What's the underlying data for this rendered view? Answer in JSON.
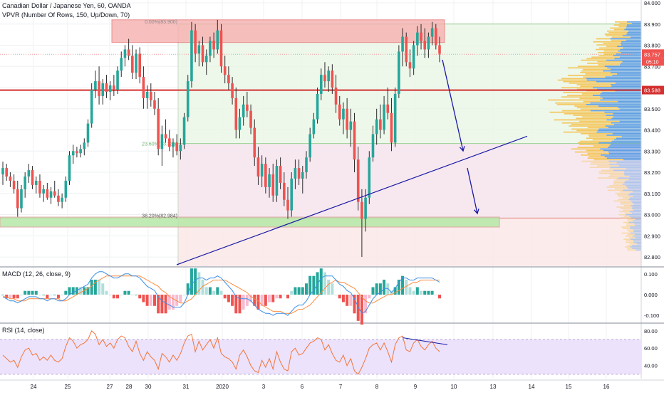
{
  "header": {
    "title": "Canadian Dollar / Japanese Yen, 60, OANDA",
    "indicator": "VPVR (Number Of Rows, 150, Up/Down, 70)"
  },
  "colors": {
    "up": "#26a69a",
    "down": "#ef5350",
    "wick": "#2b2b2b",
    "accent_line": "#d32f2f",
    "trend": "#1a1aa6",
    "rsi_band": "#ece2fb",
    "vol_up": "#5b9be3",
    "vol_down": "#f4c55a"
  },
  "chart_data": [
    {
      "type": "candlestick",
      "name": "price",
      "ylim": [
        82.77,
        84.0
      ],
      "y_ticks": [
        "84.000",
        "83.900",
        "83.800",
        "83.700",
        "83.600",
        "83.500",
        "83.400",
        "83.300",
        "83.200",
        "83.100",
        "83.000",
        "82.900",
        "82.800"
      ],
      "x_ticks": [
        "24",
        "25",
        "27",
        "28",
        "30",
        "31",
        "2020",
        "3",
        "6",
        "7",
        "8",
        "9",
        "10",
        "13",
        "14",
        "15",
        "16"
      ],
      "last_price": "83.757",
      "countdown": "05:10",
      "level_price": "83.588",
      "fib_labels": [
        "0.00%(83.900)",
        "23.60%(83.336)",
        "38.20%(82.984)"
      ],
      "fib_levels": [
        83.9,
        83.336,
        82.984
      ],
      "candles_ohlc_estimated": [
        [
          83.19,
          83.25,
          83.14,
          83.22
        ],
        [
          83.22,
          83.24,
          83.16,
          83.18
        ],
        [
          83.18,
          83.2,
          83.13,
          83.16
        ],
        [
          83.16,
          83.19,
          83.1,
          83.12
        ],
        [
          83.12,
          83.16,
          82.99,
          83.03
        ],
        [
          83.03,
          83.14,
          83.01,
          83.12
        ],
        [
          83.12,
          83.2,
          83.08,
          83.18
        ],
        [
          83.18,
          83.24,
          83.15,
          83.21
        ],
        [
          83.21,
          83.23,
          83.12,
          83.14
        ],
        [
          83.14,
          83.18,
          83.1,
          83.16
        ],
        [
          83.16,
          83.19,
          83.08,
          83.1
        ],
        [
          83.1,
          83.14,
          83.06,
          83.12
        ],
        [
          83.12,
          83.15,
          83.07,
          83.08
        ],
        [
          83.08,
          83.13,
          83.05,
          83.11
        ],
        [
          83.11,
          83.16,
          83.08,
          83.09
        ],
        [
          83.09,
          83.12,
          83.04,
          83.06
        ],
        [
          83.06,
          83.1,
          83.03,
          83.08
        ],
        [
          83.08,
          83.18,
          83.06,
          83.16
        ],
        [
          83.16,
          83.3,
          83.14,
          83.28
        ],
        [
          83.28,
          83.33,
          83.24,
          83.3
        ],
        [
          83.3,
          83.32,
          83.27,
          83.29
        ],
        [
          83.29,
          83.33,
          83.27,
          83.31
        ],
        [
          83.31,
          83.36,
          83.28,
          83.34
        ],
        [
          83.34,
          83.45,
          83.32,
          83.43
        ],
        [
          83.43,
          83.62,
          83.41,
          83.59
        ],
        [
          83.59,
          83.68,
          83.55,
          83.63
        ],
        [
          83.63,
          83.7,
          83.52,
          83.56
        ],
        [
          83.56,
          83.64,
          83.52,
          83.62
        ],
        [
          83.62,
          83.66,
          83.55,
          83.58
        ],
        [
          83.58,
          83.63,
          83.54,
          83.61
        ],
        [
          83.61,
          83.66,
          83.56,
          83.59
        ],
        [
          83.59,
          83.7,
          83.57,
          83.68
        ],
        [
          83.68,
          83.77,
          83.65,
          83.74
        ],
        [
          83.74,
          83.8,
          83.7,
          83.78
        ],
        [
          83.78,
          83.83,
          83.73,
          83.75
        ],
        [
          83.75,
          83.8,
          83.64,
          83.67
        ],
        [
          83.67,
          83.78,
          83.64,
          83.76
        ],
        [
          83.76,
          83.79,
          83.62,
          83.65
        ],
        [
          83.65,
          83.7,
          83.5,
          83.55
        ],
        [
          83.55,
          83.61,
          83.5,
          83.58
        ],
        [
          83.58,
          83.62,
          83.51,
          83.54
        ],
        [
          83.54,
          83.58,
          83.47,
          83.5
        ],
        [
          83.5,
          83.55,
          83.28,
          83.31
        ],
        [
          83.31,
          83.42,
          83.23,
          83.38
        ],
        [
          83.38,
          83.45,
          83.34,
          83.36
        ],
        [
          83.36,
          83.4,
          83.3,
          83.32
        ],
        [
          83.32,
          83.36,
          83.27,
          83.34
        ],
        [
          83.34,
          83.38,
          83.28,
          83.3
        ],
        [
          83.3,
          83.36,
          83.26,
          83.33
        ],
        [
          83.33,
          83.48,
          83.31,
          83.46
        ],
        [
          83.46,
          83.66,
          83.44,
          83.63
        ],
        [
          83.63,
          83.91,
          83.6,
          83.87
        ],
        [
          83.87,
          83.9,
          83.72,
          83.76
        ],
        [
          83.76,
          83.82,
          83.7,
          83.8
        ],
        [
          83.8,
          83.84,
          83.7,
          83.72
        ],
        [
          83.72,
          83.78,
          83.66,
          83.75
        ],
        [
          83.75,
          83.84,
          83.72,
          83.82
        ],
        [
          83.82,
          83.86,
          83.74,
          83.78
        ],
        [
          83.78,
          83.92,
          83.76,
          83.87
        ],
        [
          83.87,
          83.9,
          83.67,
          83.7
        ],
        [
          83.7,
          83.75,
          83.62,
          83.66
        ],
        [
          83.66,
          83.7,
          83.59,
          83.62
        ],
        [
          83.62,
          83.65,
          83.52,
          83.55
        ],
        [
          83.55,
          83.6,
          83.36,
          83.4
        ],
        [
          83.4,
          83.5,
          83.36,
          83.46
        ],
        [
          83.46,
          83.56,
          83.42,
          83.52
        ],
        [
          83.52,
          83.58,
          83.46,
          83.49
        ],
        [
          83.49,
          83.52,
          83.38,
          83.41
        ],
        [
          83.41,
          83.45,
          83.23,
          83.27
        ],
        [
          83.27,
          83.32,
          83.14,
          83.18
        ],
        [
          83.18,
          83.28,
          83.13,
          83.24
        ],
        [
          83.24,
          83.27,
          83.1,
          83.13
        ],
        [
          83.13,
          83.22,
          83.08,
          83.19
        ],
        [
          83.19,
          83.24,
          83.06,
          83.09
        ],
        [
          83.09,
          83.26,
          83.06,
          83.23
        ],
        [
          83.23,
          83.27,
          83.12,
          83.15
        ],
        [
          83.15,
          83.2,
          83.04,
          83.07
        ],
        [
          83.07,
          83.13,
          82.98,
          83.02
        ],
        [
          83.02,
          83.2,
          82.99,
          83.17
        ],
        [
          83.17,
          83.26,
          83.12,
          83.22
        ],
        [
          83.22,
          83.26,
          83.14,
          83.17
        ],
        [
          83.17,
          83.23,
          83.1,
          83.2
        ],
        [
          83.2,
          83.3,
          83.17,
          83.27
        ],
        [
          83.27,
          83.41,
          83.25,
          83.38
        ],
        [
          83.38,
          83.48,
          83.36,
          83.45
        ],
        [
          83.45,
          83.6,
          83.43,
          83.57
        ],
        [
          83.57,
          83.69,
          83.54,
          83.66
        ],
        [
          83.66,
          83.72,
          83.6,
          83.63
        ],
        [
          83.63,
          83.7,
          83.58,
          83.68
        ],
        [
          83.68,
          83.71,
          83.57,
          83.6
        ],
        [
          83.6,
          83.66,
          83.48,
          83.52
        ],
        [
          83.52,
          83.56,
          83.42,
          83.45
        ],
        [
          83.45,
          83.53,
          83.38,
          83.5
        ],
        [
          83.5,
          83.55,
          83.36,
          83.4
        ],
        [
          83.4,
          83.5,
          83.32,
          83.44
        ],
        [
          83.44,
          83.48,
          83.2,
          83.26
        ],
        [
          83.26,
          83.32,
          83.02,
          83.06
        ],
        [
          83.06,
          83.12,
          82.8,
          82.98
        ],
        [
          82.98,
          83.12,
          82.92,
          83.08
        ],
        [
          83.08,
          83.3,
          83.05,
          83.27
        ],
        [
          83.27,
          83.42,
          83.25,
          83.38
        ],
        [
          83.38,
          83.5,
          83.33,
          83.45
        ],
        [
          83.45,
          83.52,
          83.36,
          83.4
        ],
        [
          83.4,
          83.56,
          83.38,
          83.52
        ],
        [
          83.52,
          83.6,
          83.45,
          83.48
        ],
        [
          83.48,
          83.55,
          83.3,
          83.34
        ],
        [
          83.34,
          83.6,
          83.32,
          83.57
        ],
        [
          83.57,
          83.8,
          83.55,
          83.77
        ],
        [
          83.77,
          83.88,
          83.7,
          83.84
        ],
        [
          83.84,
          83.86,
          83.7,
          83.72
        ],
        [
          83.72,
          83.78,
          83.65,
          83.69
        ],
        [
          83.69,
          83.82,
          83.66,
          83.8
        ],
        [
          83.8,
          83.89,
          83.75,
          83.86
        ],
        [
          83.86,
          83.9,
          83.78,
          83.82
        ],
        [
          83.82,
          83.88,
          83.74,
          83.78
        ],
        [
          83.78,
          83.86,
          83.74,
          83.84
        ],
        [
          83.84,
          83.91,
          83.8,
          83.88
        ],
        [
          83.88,
          83.9,
          83.78,
          83.8
        ],
        [
          83.8,
          83.84,
          83.72,
          83.76
        ]
      ]
    },
    {
      "type": "line",
      "name": "MACD",
      "label": "MACD (12, 26, close, 9)",
      "ylim": [
        -0.13,
        0.13
      ],
      "y_ticks": [
        "0.100",
        "0.000",
        "-0.100"
      ],
      "macd_estimated": [
        -0.01,
        -0.02,
        -0.03,
        -0.03,
        -0.04,
        -0.03,
        -0.02,
        -0.01,
        -0.01,
        -0.01,
        -0.02,
        -0.02,
        -0.03,
        -0.02,
        -0.02,
        -0.03,
        -0.03,
        -0.02,
        0.0,
        0.01,
        0.02,
        0.03,
        0.04,
        0.05,
        0.08,
        0.1,
        0.11,
        0.11,
        0.1,
        0.09,
        0.08,
        0.08,
        0.09,
        0.1,
        0.1,
        0.09,
        0.09,
        0.08,
        0.06,
        0.04,
        0.03,
        0.02,
        -0.01,
        -0.03,
        -0.04,
        -0.05,
        -0.06,
        -0.06,
        -0.06,
        -0.04,
        0.0,
        0.05,
        0.07,
        0.08,
        0.08,
        0.07,
        0.08,
        0.08,
        0.09,
        0.08,
        0.06,
        0.04,
        0.02,
        -0.01,
        -0.02,
        -0.02,
        -0.02,
        -0.03,
        -0.05,
        -0.07,
        -0.08,
        -0.09,
        -0.09,
        -0.1,
        -0.09,
        -0.09,
        -0.09,
        -0.1,
        -0.08,
        -0.06,
        -0.05,
        -0.05,
        -0.03,
        0.0,
        0.02,
        0.05,
        0.08,
        0.09,
        0.09,
        0.09,
        0.07,
        0.05,
        0.04,
        0.02,
        0.01,
        -0.02,
        -0.06,
        -0.09,
        -0.08,
        -0.05,
        -0.02,
        0.0,
        0.01,
        0.03,
        0.03,
        0.01,
        0.03,
        0.06,
        0.08,
        0.08,
        0.07,
        0.07,
        0.08,
        0.08,
        0.08,
        0.08,
        0.08,
        0.07,
        0.06
      ],
      "signal_estimated": [
        -0.01,
        -0.01,
        -0.02,
        -0.02,
        -0.03,
        -0.03,
        -0.03,
        -0.02,
        -0.02,
        -0.02,
        -0.02,
        -0.02,
        -0.02,
        -0.02,
        -0.02,
        -0.02,
        -0.03,
        -0.03,
        -0.02,
        -0.01,
        0.0,
        0.01,
        0.02,
        0.03,
        0.04,
        0.06,
        0.07,
        0.08,
        0.09,
        0.09,
        0.09,
        0.09,
        0.09,
        0.09,
        0.09,
        0.09,
        0.09,
        0.09,
        0.08,
        0.07,
        0.06,
        0.05,
        0.04,
        0.02,
        0.01,
        -0.01,
        -0.02,
        -0.03,
        -0.04,
        -0.04,
        -0.03,
        -0.02,
        0.0,
        0.02,
        0.04,
        0.05,
        0.06,
        0.07,
        0.07,
        0.07,
        0.07,
        0.06,
        0.05,
        0.04,
        0.03,
        0.02,
        0.01,
        -0.01,
        -0.02,
        -0.03,
        -0.05,
        -0.06,
        -0.07,
        -0.08,
        -0.08,
        -0.08,
        -0.09,
        -0.09,
        -0.09,
        -0.08,
        -0.07,
        -0.07,
        -0.06,
        -0.05,
        -0.03,
        -0.01,
        0.01,
        0.03,
        0.05,
        0.06,
        0.07,
        0.06,
        0.06,
        0.05,
        0.04,
        0.03,
        0.01,
        -0.01,
        -0.03,
        -0.04,
        -0.04,
        -0.03,
        -0.02,
        -0.01,
        0.0,
        0.0,
        0.01,
        0.02,
        0.03,
        0.04,
        0.05,
        0.06,
        0.06,
        0.07,
        0.07,
        0.07,
        0.07,
        0.07,
        0.07
      ]
    },
    {
      "type": "line",
      "name": "RSI",
      "label": "RSI (14, close)",
      "ylim": [
        25,
        88
      ],
      "y_ticks": [
        "80.00",
        "60.00",
        "40.00"
      ],
      "band": [
        30,
        70
      ],
      "values_estimated": [
        52,
        48,
        44,
        46,
        38,
        50,
        58,
        60,
        52,
        54,
        46,
        50,
        46,
        52,
        46,
        44,
        48,
        62,
        72,
        68,
        60,
        64,
        66,
        70,
        80,
        76,
        64,
        70,
        62,
        66,
        60,
        70,
        74,
        72,
        62,
        56,
        68,
        54,
        46,
        56,
        50,
        46,
        36,
        54,
        50,
        44,
        52,
        46,
        54,
        66,
        74,
        76,
        56,
        68,
        58,
        64,
        70,
        60,
        72,
        54,
        50,
        48,
        44,
        36,
        52,
        58,
        50,
        40,
        34,
        32,
        46,
        38,
        48,
        36,
        56,
        44,
        36,
        34,
        56,
        60,
        52,
        54,
        60,
        66,
        68,
        72,
        70,
        58,
        64,
        54,
        46,
        44,
        52,
        40,
        48,
        34,
        30,
        38,
        48,
        60,
        64,
        66,
        58,
        66,
        56,
        44,
        64,
        72,
        74,
        58,
        56,
        66,
        70,
        62,
        58,
        64,
        68,
        60,
        56
      ],
      "divergence_label": ""
    }
  ]
}
